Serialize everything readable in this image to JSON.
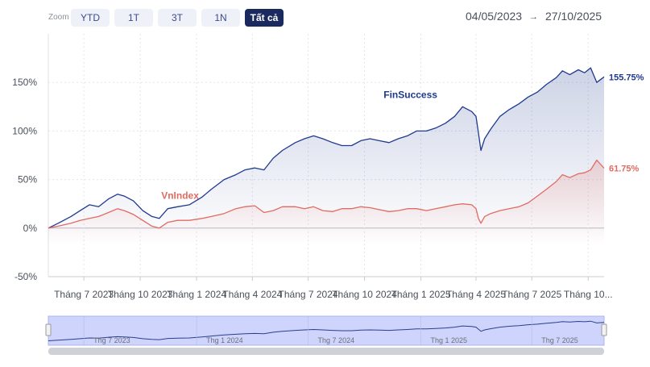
{
  "toolbar": {
    "zoom_label": "Zoom",
    "buttons": [
      {
        "label": "YTD",
        "active": false
      },
      {
        "label": "1T",
        "active": false
      },
      {
        "label": "3T",
        "active": false
      },
      {
        "label": "1N",
        "active": false
      },
      {
        "label": "Tất cả",
        "active": true
      }
    ],
    "date_from": "04/05/2023",
    "arrow": "→",
    "date_to": "27/10/2025"
  },
  "colors": {
    "finsuccess": "#1f3a8f",
    "vnindex": "#e06b62",
    "navigator_fill": "#c5cdfa",
    "active_button": "#1a2a5e"
  },
  "chart_data": {
    "type": "line",
    "ylim": [
      -50,
      200
    ],
    "yticks": [
      -50,
      0,
      50,
      100,
      150
    ],
    "ytick_labels": [
      "-50%",
      "0%",
      "50%",
      "100%",
      "150%"
    ],
    "xlim": [
      "2023-05-04",
      "2025-10-27"
    ],
    "x_ticks": [
      {
        "date": "2023-07-01",
        "label": "Tháng 7 2023"
      },
      {
        "date": "2023-10-01",
        "label": "Tháng 10 2023"
      },
      {
        "date": "2024-01-01",
        "label": "Tháng 1 2024"
      },
      {
        "date": "2024-04-01",
        "label": "Tháng 4 2024"
      },
      {
        "date": "2024-07-01",
        "label": "Tháng 7 2024"
      },
      {
        "date": "2024-10-01",
        "label": "Tháng 10 2024"
      },
      {
        "date": "2025-01-01",
        "label": "Tháng 1 2025"
      },
      {
        "date": "2025-04-01",
        "label": "Tháng 4 2025"
      },
      {
        "date": "2025-07-01",
        "label": "Tháng 7 2025"
      },
      {
        "date": "2025-10-01",
        "label": "Tháng 10..."
      }
    ],
    "grid": true,
    "series": [
      {
        "name": "FinSuccess",
        "end_label": "155.75%",
        "color": "#1f3a8f",
        "points": [
          [
            "2023-05-04",
            0
          ],
          [
            "2023-05-20",
            5
          ],
          [
            "2023-06-10",
            12
          ],
          [
            "2023-06-25",
            18
          ],
          [
            "2023-07-10",
            24
          ],
          [
            "2023-07-25",
            22
          ],
          [
            "2023-08-10",
            30
          ],
          [
            "2023-08-25",
            35
          ],
          [
            "2023-09-05",
            33
          ],
          [
            "2023-09-20",
            28
          ],
          [
            "2023-10-05",
            18
          ],
          [
            "2023-10-20",
            12
          ],
          [
            "2023-11-01",
            10
          ],
          [
            "2023-11-15",
            20
          ],
          [
            "2023-12-01",
            22
          ],
          [
            "2023-12-20",
            24
          ],
          [
            "2024-01-10",
            32
          ],
          [
            "2024-01-25",
            40
          ],
          [
            "2024-02-15",
            50
          ],
          [
            "2024-03-05",
            55
          ],
          [
            "2024-03-20",
            60
          ],
          [
            "2024-04-05",
            62
          ],
          [
            "2024-04-20",
            60
          ],
          [
            "2024-05-05",
            72
          ],
          [
            "2024-05-20",
            80
          ],
          [
            "2024-06-10",
            88
          ],
          [
            "2024-06-25",
            92
          ],
          [
            "2024-07-10",
            95
          ],
          [
            "2024-07-25",
            92
          ],
          [
            "2024-08-10",
            88
          ],
          [
            "2024-08-25",
            85
          ],
          [
            "2024-09-10",
            85
          ],
          [
            "2024-09-25",
            90
          ],
          [
            "2024-10-10",
            92
          ],
          [
            "2024-10-25",
            90
          ],
          [
            "2024-11-10",
            88
          ],
          [
            "2024-11-25",
            92
          ],
          [
            "2024-12-10",
            95
          ],
          [
            "2024-12-25",
            100
          ],
          [
            "2025-01-10",
            100
          ],
          [
            "2025-01-25",
            103
          ],
          [
            "2025-02-10",
            108
          ],
          [
            "2025-02-25",
            115
          ],
          [
            "2025-03-10",
            125
          ],
          [
            "2025-03-25",
            120
          ],
          [
            "2025-04-01",
            115
          ],
          [
            "2025-04-05",
            98
          ],
          [
            "2025-04-09",
            80
          ],
          [
            "2025-04-15",
            92
          ],
          [
            "2025-04-25",
            102
          ],
          [
            "2025-05-10",
            115
          ],
          [
            "2025-05-25",
            122
          ],
          [
            "2025-06-10",
            128
          ],
          [
            "2025-06-25",
            135
          ],
          [
            "2025-07-10",
            140
          ],
          [
            "2025-07-25",
            148
          ],
          [
            "2025-08-10",
            155
          ],
          [
            "2025-08-20",
            162
          ],
          [
            "2025-09-01",
            158
          ],
          [
            "2025-09-15",
            163
          ],
          [
            "2025-09-25",
            160
          ],
          [
            "2025-10-05",
            165
          ],
          [
            "2025-10-15",
            150
          ],
          [
            "2025-10-27",
            155.75
          ]
        ]
      },
      {
        "name": "VnIndex",
        "end_label": "61.75%",
        "color": "#e06b62",
        "points": [
          [
            "2023-05-04",
            0
          ],
          [
            "2023-05-20",
            2
          ],
          [
            "2023-06-10",
            5
          ],
          [
            "2023-06-25",
            8
          ],
          [
            "2023-07-10",
            10
          ],
          [
            "2023-07-25",
            12
          ],
          [
            "2023-08-10",
            16
          ],
          [
            "2023-08-25",
            20
          ],
          [
            "2023-09-05",
            18
          ],
          [
            "2023-09-20",
            14
          ],
          [
            "2023-10-05",
            8
          ],
          [
            "2023-10-20",
            2
          ],
          [
            "2023-11-01",
            0
          ],
          [
            "2023-11-15",
            6
          ],
          [
            "2023-12-01",
            8
          ],
          [
            "2023-12-20",
            8
          ],
          [
            "2024-01-10",
            10
          ],
          [
            "2024-01-25",
            12
          ],
          [
            "2024-02-15",
            15
          ],
          [
            "2024-03-05",
            20
          ],
          [
            "2024-03-20",
            22
          ],
          [
            "2024-04-05",
            23
          ],
          [
            "2024-04-20",
            16
          ],
          [
            "2024-05-05",
            18
          ],
          [
            "2024-05-20",
            22
          ],
          [
            "2024-06-10",
            22
          ],
          [
            "2024-06-25",
            20
          ],
          [
            "2024-07-10",
            22
          ],
          [
            "2024-07-25",
            18
          ],
          [
            "2024-08-10",
            17
          ],
          [
            "2024-08-25",
            20
          ],
          [
            "2024-09-10",
            20
          ],
          [
            "2024-09-25",
            22
          ],
          [
            "2024-10-10",
            21
          ],
          [
            "2024-10-25",
            19
          ],
          [
            "2024-11-10",
            17
          ],
          [
            "2024-11-25",
            18
          ],
          [
            "2024-12-10",
            20
          ],
          [
            "2024-12-25",
            20
          ],
          [
            "2025-01-10",
            18
          ],
          [
            "2025-01-25",
            20
          ],
          [
            "2025-02-10",
            22
          ],
          [
            "2025-02-25",
            24
          ],
          [
            "2025-03-10",
            25
          ],
          [
            "2025-03-25",
            24
          ],
          [
            "2025-04-01",
            20
          ],
          [
            "2025-04-05",
            10
          ],
          [
            "2025-04-09",
            5
          ],
          [
            "2025-04-15",
            12
          ],
          [
            "2025-04-25",
            15
          ],
          [
            "2025-05-10",
            18
          ],
          [
            "2025-05-25",
            20
          ],
          [
            "2025-06-10",
            22
          ],
          [
            "2025-06-25",
            26
          ],
          [
            "2025-07-10",
            33
          ],
          [
            "2025-07-25",
            40
          ],
          [
            "2025-08-10",
            48
          ],
          [
            "2025-08-20",
            55
          ],
          [
            "2025-09-01",
            52
          ],
          [
            "2025-09-15",
            56
          ],
          [
            "2025-09-25",
            57
          ],
          [
            "2025-10-05",
            60
          ],
          [
            "2025-10-15",
            70
          ],
          [
            "2025-10-27",
            61.75
          ]
        ]
      }
    ],
    "annotations": [
      {
        "series": "FinSuccess",
        "text": "FinSuccess",
        "at": [
          "2024-12-15",
          134
        ]
      },
      {
        "series": "VnIndex",
        "text": "VnIndex",
        "at": [
          "2023-12-05",
          30
        ]
      }
    ],
    "navigator": {
      "labels": [
        {
          "date": "2023-07-01",
          "label": "Thg 7 2023"
        },
        {
          "date": "2024-01-01",
          "label": "Thg 1 2024"
        },
        {
          "date": "2024-07-01",
          "label": "Thg 7 2024"
        },
        {
          "date": "2025-01-01",
          "label": "Thg 1 2025"
        },
        {
          "date": "2025-07-01",
          "label": "Thg 7 2025"
        }
      ]
    }
  }
}
